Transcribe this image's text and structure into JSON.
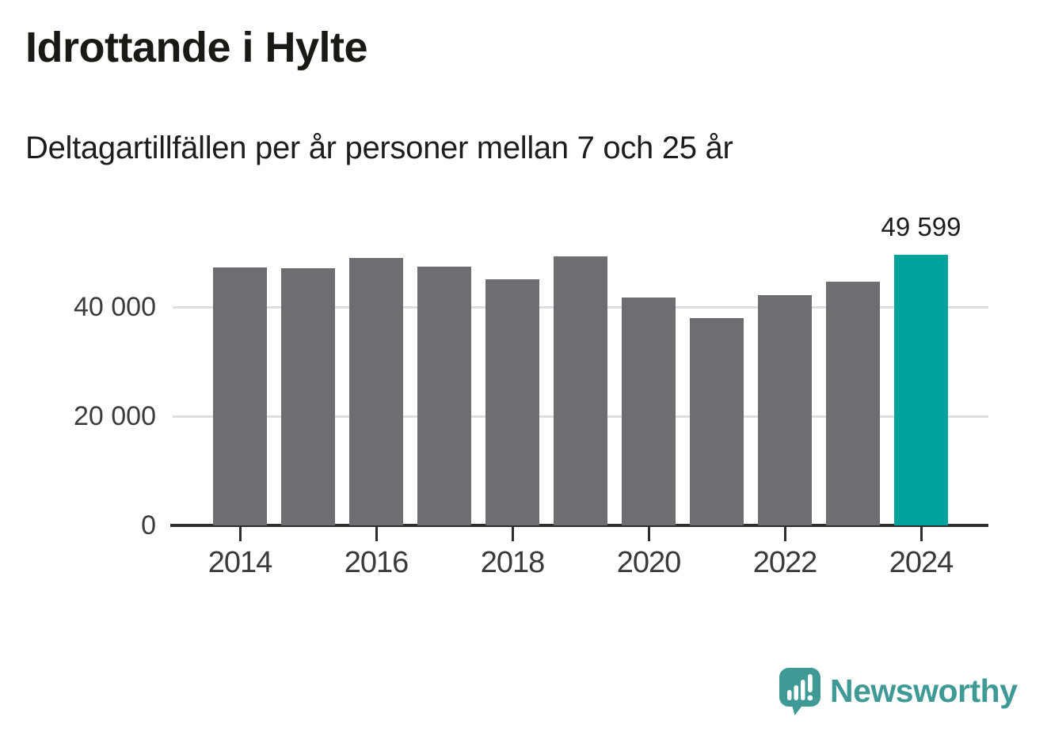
{
  "header": {
    "title": "Idrottande i Hylte",
    "subtitle": "Deltagartillfällen per år personer mellan 7 och 25 år"
  },
  "chart_data": {
    "type": "bar",
    "title": "Idrottande i Hylte",
    "subtitle": "Deltagartillfällen per år personer mellan 7 och 25 år",
    "categories": [
      "2014",
      "2015",
      "2016",
      "2017",
      "2018",
      "2019",
      "2020",
      "2021",
      "2022",
      "2023",
      "2024"
    ],
    "values": [
      47300,
      47100,
      49000,
      47400,
      45100,
      49300,
      41800,
      37900,
      42200,
      44600,
      49599
    ],
    "highlight_index": 10,
    "highlight_label": "49 599",
    "xtick_labels": [
      "2014",
      "2016",
      "2018",
      "2020",
      "2022",
      "2024"
    ],
    "ytick_labels": [
      "0",
      "20 000",
      "40 000"
    ],
    "ytick_values": [
      0,
      20000,
      40000
    ],
    "ylim": [
      0,
      52000
    ],
    "xlabel": "",
    "ylabel": "",
    "grid": "horizontal",
    "legend_position": "none",
    "bar_color": "#6e6d72",
    "highlight_color": "#00a29b",
    "gridline_color": "#dedede",
    "axis_color": "#2d2d2d"
  },
  "footer": {
    "brand": "Newsworthy",
    "brand_color": "#3f9a95",
    "logo_icon": "newsworthy-speech-bubble-chart-icon"
  }
}
